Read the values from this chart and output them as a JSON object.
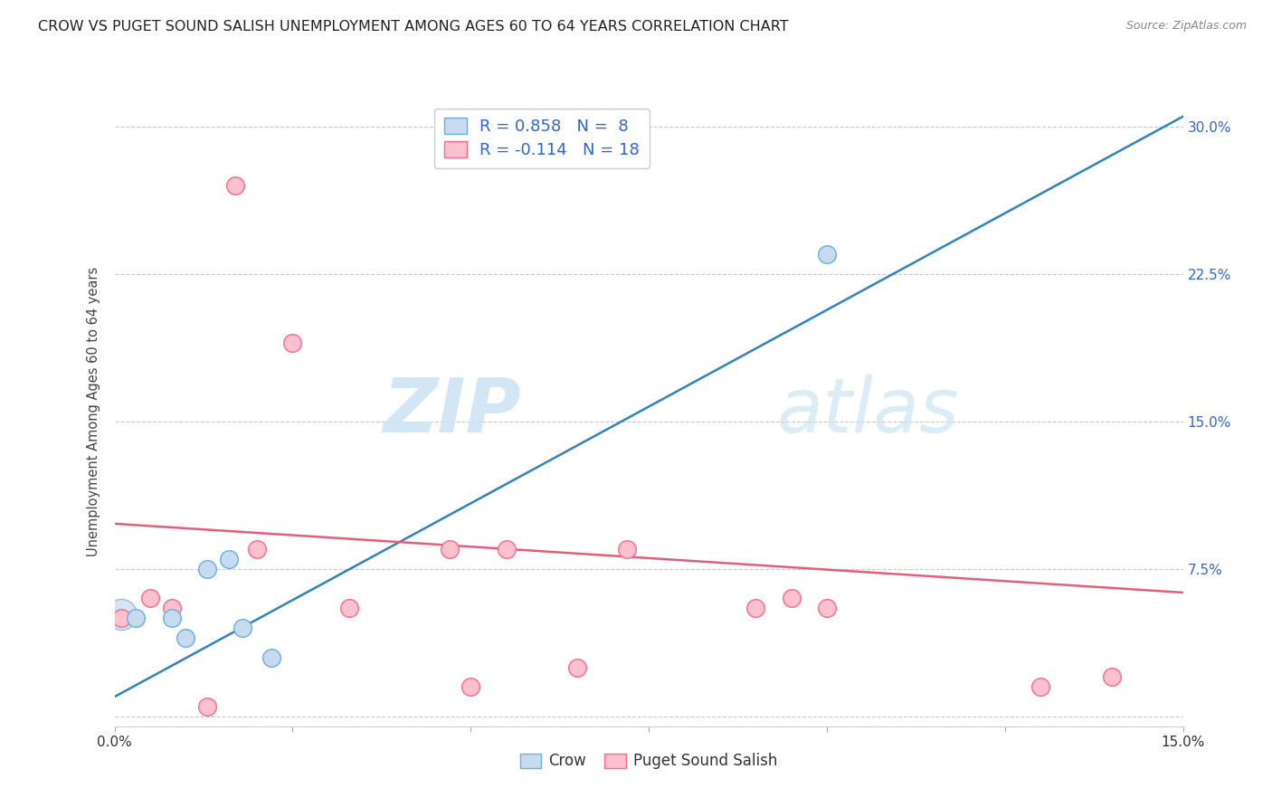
{
  "title": "CROW VS PUGET SOUND SALISH UNEMPLOYMENT AMONG AGES 60 TO 64 YEARS CORRELATION CHART",
  "source": "Source: ZipAtlas.com",
  "ylabel": "Unemployment Among Ages 60 to 64 years",
  "xlim": [
    0.0,
    0.15
  ],
  "ylim": [
    -0.005,
    0.315
  ],
  "xticks": [
    0.0,
    0.025,
    0.05,
    0.075,
    0.1,
    0.125,
    0.15
  ],
  "yticks": [
    0.0,
    0.075,
    0.15,
    0.225,
    0.3
  ],
  "xticklabels": [
    "0.0%",
    "",
    "",
    "",
    "",
    "",
    "15.0%"
  ],
  "yticklabels": [
    "",
    "7.5%",
    "15.0%",
    "22.5%",
    "30.0%"
  ],
  "crow_scatter_x": [
    0.003,
    0.008,
    0.01,
    0.013,
    0.016,
    0.018,
    0.022,
    0.1
  ],
  "crow_scatter_y": [
    0.05,
    0.05,
    0.04,
    0.075,
    0.08,
    0.045,
    0.03,
    0.235
  ],
  "crow_line_x": [
    0.0,
    0.15
  ],
  "crow_line_y": [
    0.01,
    0.305
  ],
  "pss_scatter_x": [
    0.001,
    0.005,
    0.008,
    0.013,
    0.017,
    0.02,
    0.025,
    0.033,
    0.047,
    0.05,
    0.055,
    0.065,
    0.072,
    0.09,
    0.095,
    0.1,
    0.13,
    0.14
  ],
  "pss_scatter_y": [
    0.05,
    0.06,
    0.055,
    0.005,
    0.27,
    0.085,
    0.19,
    0.055,
    0.085,
    0.015,
    0.085,
    0.025,
    0.085,
    0.055,
    0.06,
    0.055,
    0.015,
    0.02
  ],
  "pss_line_x": [
    0.0,
    0.15
  ],
  "pss_line_y": [
    0.098,
    0.063
  ],
  "crow_color": "#6baed6",
  "crow_color_fill": "#c6dbef",
  "pss_color": "#fb6a8a",
  "pss_color_fill": "#fcc0cf",
  "crow_line_color": "#3182bd",
  "pss_line_color": "#e0607a",
  "background_color": "#ffffff",
  "grid_color": "#c8c8c8",
  "watermark_zip": "ZIP",
  "watermark_atlas": "atlas",
  "legend_crow_label": "R = 0.858   N =  8",
  "legend_pss_label": "R = -0.114   N = 18",
  "legend_crow_label2": "Crow",
  "legend_pss_label2": "Puget Sound Salish",
  "title_color": "#222222",
  "axis_label_color": "#444444",
  "tick_color_right": "#3366cc",
  "tick_color_bottom": "#333333",
  "source_color": "#888888"
}
